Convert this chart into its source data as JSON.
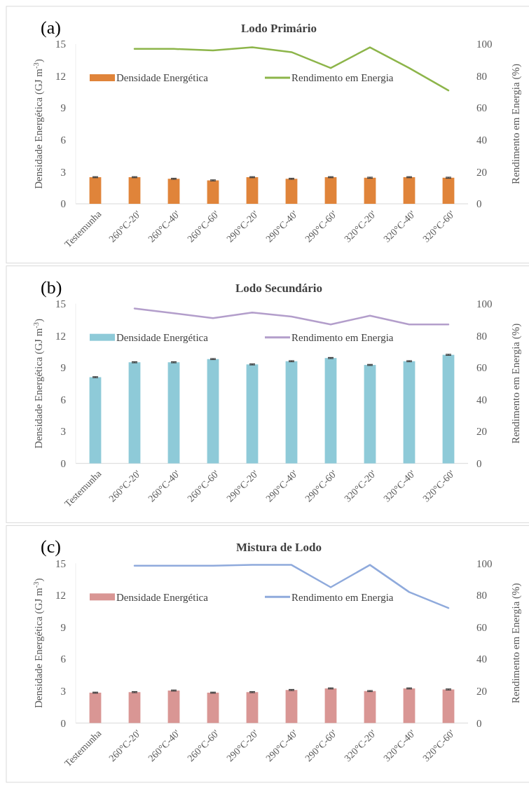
{
  "chart_data": [
    {
      "type": "bar",
      "title": "Lodo Primário",
      "annotations": [
        "(a)"
      ],
      "ylabel": "Densidade Energética (GJ m$^{-3}$)",
      "y2label": "Rendimento em Energia (%)",
      "categories": [
        "Testemunha",
        "260°C-20'",
        "260°C-40'",
        "260°C-60'",
        "290°C-20'",
        "290°C-40'",
        "290°C-60'",
        "320°C-20'",
        "320°C-40'",
        "320°C-60'"
      ],
      "series": [
        {
          "name": "Densidade Energética",
          "color": "#e0843a",
          "values": [
            2.5,
            2.5,
            2.35,
            2.2,
            2.5,
            2.35,
            2.5,
            2.45,
            2.5,
            2.45
          ],
          "errors": [
            0.05,
            0.05,
            0.05,
            0.05,
            0.05,
            0.05,
            0.05,
            0.05,
            0.05,
            0.05
          ]
        },
        {
          "name": "Rendimento em Energia",
          "type": "line",
          "axis": "y2",
          "color": "#8db54a",
          "values": [
            null,
            97,
            97,
            96,
            98,
            95,
            85,
            98,
            85,
            71
          ]
        }
      ],
      "ylim": [
        0,
        15
      ],
      "yticks": [
        0,
        3,
        6,
        9,
        12,
        15
      ],
      "y2lim": [
        0,
        100
      ],
      "y2ticks": [
        0,
        20,
        40,
        60,
        80,
        100
      ],
      "legend": "top",
      "marker": "none",
      "line_style": "solid"
    },
    {
      "type": "bar",
      "title": "Lodo Secundário",
      "annotations": [
        "(b)"
      ],
      "ylabel": "Densidade Energética (GJ m$^{-3}$)",
      "y2label": "Rendimento em Energia (%)",
      "categories": [
        "Testemunha",
        "260°C-20'",
        "260°C-40'",
        "260°C-60'",
        "290°C-20'",
        "290°C-40'",
        "290°C-60'",
        "320°C-20'",
        "320°C-40'",
        "320°C-60'"
      ],
      "series": [
        {
          "name": "Densidade Energética",
          "color": "#8ecad8",
          "values": [
            8.1,
            9.5,
            9.5,
            9.8,
            9.3,
            9.6,
            9.9,
            9.25,
            9.6,
            10.2
          ],
          "errors": [
            0.05,
            0.05,
            0.05,
            0.05,
            0.05,
            0.05,
            0.05,
            0.05,
            0.05,
            0.05
          ]
        },
        {
          "name": "Rendimento em Energia",
          "type": "line",
          "axis": "y2",
          "color": "#b39ecb",
          "values": [
            null,
            97,
            94,
            91,
            94.5,
            92,
            87,
            92.5,
            87,
            87
          ]
        }
      ],
      "ylim": [
        0,
        15
      ],
      "yticks": [
        0,
        3,
        6,
        9,
        12,
        15
      ],
      "y2lim": [
        0,
        100
      ],
      "y2ticks": [
        0,
        20,
        40,
        60,
        80,
        100
      ],
      "legend": "top",
      "marker": "none",
      "line_style": "solid"
    },
    {
      "type": "bar",
      "title": "Mistura de Lodo",
      "annotations": [
        "(c)"
      ],
      "ylabel": "Densidade Energética (GJ m$^{-3}$)",
      "y2label": "Rendimento em Energia (%)",
      "categories": [
        "Testemunha",
        "260°C-20'",
        "260°C-40'",
        "260°C-60'",
        "290°C-20'",
        "290°C-40'",
        "290°C-60'",
        "320°C-20'",
        "320°C-40'",
        "320°C-60'"
      ],
      "series": [
        {
          "name": "Densidade Energética",
          "color": "#d99694",
          "values": [
            2.85,
            2.9,
            3.05,
            2.85,
            2.9,
            3.1,
            3.25,
            3.0,
            3.25,
            3.15
          ],
          "errors": [
            0.05,
            0.05,
            0.05,
            0.05,
            0.05,
            0.05,
            0.05,
            0.05,
            0.05,
            0.05
          ]
        },
        {
          "name": "Rendimento em Energia",
          "type": "line",
          "axis": "y2",
          "color": "#8faadc",
          "values": [
            null,
            98.5,
            98.5,
            98.5,
            99,
            99,
            85,
            99,
            82,
            72
          ]
        }
      ],
      "ylim": [
        0,
        15
      ],
      "yticks": [
        0,
        3,
        6,
        9,
        12,
        15
      ],
      "y2lim": [
        0,
        100
      ],
      "y2ticks": [
        0,
        20,
        40,
        60,
        80,
        100
      ],
      "legend": "top",
      "marker": "none",
      "line_style": "solid"
    }
  ]
}
